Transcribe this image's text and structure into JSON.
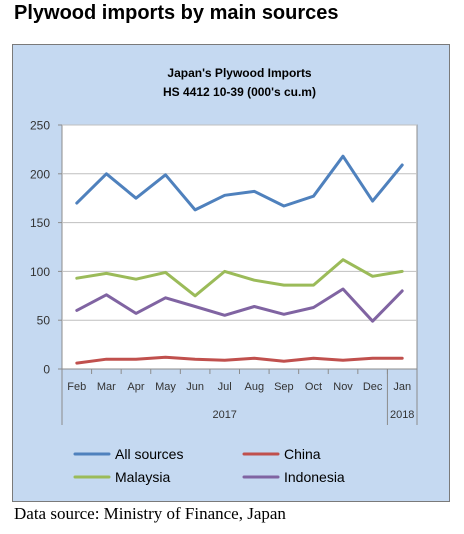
{
  "page": {
    "heading": "Plywood imports by main sources",
    "source_note": "Data source: Ministry of Finance, Japan"
  },
  "chart_data": {
    "type": "line",
    "title": "Japan's Plywood Imports",
    "subtitle": "HS 4412 10-39  (000's cu.m)",
    "xlabel": "",
    "ylabel": "",
    "categories": [
      "Feb",
      "Mar",
      "Apr",
      "May",
      "Jun",
      "Jul",
      "Aug",
      "Sep",
      "Oct",
      "Nov",
      "Dec",
      "Jan"
    ],
    "year_labels": [
      {
        "label": "2017",
        "start_index": 0,
        "end_index": 10
      },
      {
        "label": "2018",
        "start_index": 11,
        "end_index": 11
      }
    ],
    "ylim": [
      0,
      250
    ],
    "yticks": [
      0,
      50,
      100,
      150,
      200,
      250
    ],
    "grid": true,
    "legend_position": "bottom",
    "series": [
      {
        "name": "All sources",
        "color": "#4f81bd",
        "values": [
          170,
          200,
          175,
          199,
          163,
          178,
          182,
          167,
          177,
          218,
          172,
          209
        ]
      },
      {
        "name": "China",
        "color": "#c0504d",
        "values": [
          6,
          10,
          10,
          12,
          10,
          9,
          11,
          8,
          11,
          9,
          11,
          11
        ]
      },
      {
        "name": "Malaysia",
        "color": "#9bbb59",
        "values": [
          93,
          98,
          92,
          99,
          75,
          100,
          91,
          86,
          86,
          112,
          95,
          100
        ]
      },
      {
        "name": "Indonesia",
        "color": "#8064a2",
        "values": [
          60,
          76,
          57,
          73,
          64,
          55,
          64,
          56,
          63,
          82,
          49,
          80
        ]
      }
    ]
  }
}
